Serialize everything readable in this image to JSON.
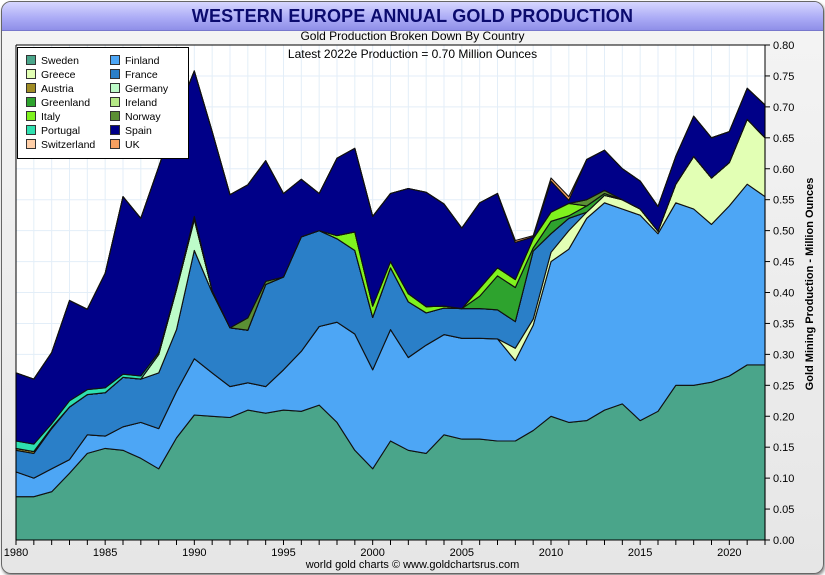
{
  "header": {
    "title": "WESTERN EUROPE ANNUAL GOLD PRODUCTION",
    "subtitle": "Gold Production Broken Down By Country",
    "subtitle2": "Latest 2022e Production = 0.70 Million Ounces"
  },
  "footer": {
    "credit": "world gold charts © www.goldchartsrus.com"
  },
  "chart_data": {
    "type": "area",
    "stacked": true,
    "title": "WESTERN EUROPE ANNUAL GOLD PRODUCTION",
    "subtitle": "Gold Production Broken Down By Country",
    "annotation": "Latest 2022e Production = 0.70 Million Ounces",
    "xlabel": "",
    "ylabel": "Gold Mining Production - Million Ounces",
    "xlim": [
      1980,
      2022
    ],
    "ylim": [
      0,
      0.8
    ],
    "xticks": [
      "1980",
      "1985",
      "1990",
      "1995",
      "2000",
      "2005",
      "2010",
      "2015",
      "2020"
    ],
    "yticks": [
      "0.00",
      "0.05",
      "0.10",
      "0.15",
      "0.20",
      "0.25",
      "0.30",
      "0.35",
      "0.40",
      "0.45",
      "0.50",
      "0.55",
      "0.60",
      "0.65",
      "0.70",
      "0.75",
      "0.80"
    ],
    "grid": true,
    "legend_position": "top-left",
    "x": [
      1980,
      1981,
      1982,
      1983,
      1984,
      1985,
      1986,
      1987,
      1988,
      1989,
      1990,
      1991,
      1992,
      1993,
      1994,
      1995,
      1996,
      1997,
      1998,
      1999,
      2000,
      2001,
      2002,
      2003,
      2004,
      2005,
      2006,
      2007,
      2008,
      2009,
      2010,
      2011,
      2012,
      2013,
      2014,
      2015,
      2016,
      2017,
      2018,
      2019,
      2020,
      2021,
      2022
    ],
    "series": [
      {
        "name": "Sweden",
        "color": "#4aa58a",
        "values": [
          0.07,
          0.07,
          0.078,
          0.108,
          0.14,
          0.148,
          0.145,
          0.132,
          0.115,
          0.165,
          0.202,
          0.2,
          0.198,
          0.21,
          0.205,
          0.21,
          0.208,
          0.218,
          0.19,
          0.145,
          0.115,
          0.16,
          0.145,
          0.14,
          0.17,
          0.163,
          0.163,
          0.16,
          0.16,
          0.177,
          0.2,
          0.19,
          0.193,
          0.21,
          0.22,
          0.193,
          0.208,
          0.25,
          0.25,
          0.255,
          0.265,
          0.283,
          0.283
        ]
      },
      {
        "name": "Finland",
        "color": "#4da6f5",
        "values": [
          0.04,
          0.03,
          0.037,
          0.022,
          0.03,
          0.02,
          0.038,
          0.058,
          0.065,
          0.075,
          0.091,
          0.07,
          0.05,
          0.044,
          0.043,
          0.065,
          0.097,
          0.127,
          0.162,
          0.188,
          0.16,
          0.18,
          0.15,
          0.175,
          0.162,
          0.163,
          0.163,
          0.165,
          0.13,
          0.17,
          0.25,
          0.28,
          0.327,
          0.335,
          0.315,
          0.332,
          0.287,
          0.295,
          0.285,
          0.255,
          0.275,
          0.292,
          0.272
        ]
      },
      {
        "name": "Greece",
        "color": "#e2ffb4",
        "values": [
          0,
          0,
          0,
          0,
          0,
          0,
          0,
          0,
          0,
          0,
          0,
          0,
          0,
          0,
          0,
          0,
          0,
          0,
          0,
          0,
          0,
          0,
          0,
          0,
          0,
          0,
          0,
          0,
          0.02,
          0.01,
          0.015,
          0.03,
          0.01,
          0.012,
          0.015,
          0.01,
          0.004,
          0.03,
          0.085,
          0.075,
          0.07,
          0.105,
          0.095
        ]
      },
      {
        "name": "France",
        "color": "#2a7fc8",
        "values": [
          0.035,
          0.04,
          0.065,
          0.085,
          0.065,
          0.07,
          0.08,
          0.07,
          0.09,
          0.1,
          0.175,
          0.13,
          0.095,
          0.085,
          0.165,
          0.15,
          0.185,
          0.155,
          0.135,
          0.135,
          0.085,
          0.1,
          0.09,
          0.052,
          0.043,
          0.048,
          0.048,
          0.047,
          0.043,
          0.11,
          0.03,
          0.02,
          0,
          0,
          0,
          0,
          0,
          0,
          0,
          0,
          0,
          0,
          0
        ]
      },
      {
        "name": "Austria",
        "color": "#a08c24",
        "values": [
          0.003,
          0.003,
          0.002,
          0,
          0,
          0,
          0,
          0,
          0,
          0,
          0,
          0,
          0,
          0,
          0,
          0,
          0,
          0,
          0,
          0,
          0,
          0,
          0,
          0,
          0,
          0,
          0,
          0,
          0,
          0,
          0,
          0,
          0,
          0,
          0,
          0,
          0,
          0,
          0,
          0,
          0,
          0,
          0
        ]
      },
      {
        "name": "Germany",
        "color": "#bdfcc9",
        "values": [
          0,
          0,
          0,
          0,
          0,
          0,
          0,
          0,
          0.03,
          0.065,
          0.05,
          0.003,
          0,
          0,
          0,
          0,
          0,
          0,
          0,
          0,
          0,
          0,
          0,
          0,
          0,
          0,
          0,
          0,
          0,
          0,
          0,
          0,
          0,
          0,
          0,
          0,
          0,
          0,
          0,
          0,
          0,
          0,
          0
        ]
      },
      {
        "name": "Greenland",
        "color": "#2ea32e",
        "values": [
          0,
          0,
          0,
          0,
          0,
          0,
          0,
          0,
          0,
          0,
          0,
          0,
          0,
          0,
          0,
          0,
          0,
          0,
          0,
          0,
          0,
          0,
          0,
          0,
          0,
          0,
          0.02,
          0.055,
          0.055,
          0.005,
          0.02,
          0.004,
          0.01,
          0.003,
          0,
          0,
          0,
          0,
          0,
          0,
          0,
          0,
          0
        ]
      },
      {
        "name": "Ireland",
        "color": "#b5e986",
        "values": [
          0,
          0,
          0,
          0,
          0,
          0,
          0,
          0,
          0,
          0,
          0,
          0,
          0,
          0,
          0,
          0,
          0,
          0,
          0,
          0,
          0,
          0,
          0,
          0,
          0,
          0,
          0,
          0,
          0,
          0,
          0,
          0,
          0,
          0,
          0,
          0,
          0,
          0,
          0,
          0,
          0,
          0,
          0
        ]
      },
      {
        "name": "Italy",
        "color": "#7ff21e",
        "values": [
          0,
          0,
          0,
          0,
          0,
          0,
          0,
          0,
          0,
          0,
          0,
          0,
          0,
          0,
          0,
          0,
          0,
          0,
          0.005,
          0.03,
          0.018,
          0.01,
          0.013,
          0.01,
          0.003,
          0,
          0.013,
          0.013,
          0.013,
          0.015,
          0.015,
          0.02,
          0.0,
          0.0,
          0,
          0,
          0,
          0,
          0,
          0,
          0,
          0,
          0
        ]
      },
      {
        "name": "Norway",
        "color": "#5b8f34",
        "values": [
          0,
          0,
          0,
          0,
          0,
          0,
          0,
          0,
          0,
          0,
          0,
          0,
          0,
          0.02,
          0.005,
          0,
          0,
          0,
          0,
          0,
          0,
          0,
          0,
          0,
          0,
          0,
          0,
          0,
          0,
          0,
          0,
          0,
          0.01,
          0.005,
          0,
          0,
          0,
          0,
          0,
          0,
          0,
          0,
          0
        ]
      },
      {
        "name": "Portugal",
        "color": "#2ee0b0",
        "values": [
          0.012,
          0.012,
          0.006,
          0.01,
          0.008,
          0.008,
          0.005,
          0.005,
          0.003,
          0.002,
          0.005,
          0,
          0,
          0,
          0,
          0,
          0,
          0,
          0,
          0,
          0,
          0,
          0,
          0,
          0,
          0,
          0,
          0,
          0,
          0,
          0,
          0,
          0,
          0,
          0,
          0,
          0,
          0,
          0,
          0,
          0,
          0,
          0
        ]
      },
      {
        "name": "Spain",
        "color": "#000088",
        "values": [
          0.11,
          0.105,
          0.115,
          0.162,
          0.13,
          0.185,
          0.287,
          0.255,
          0.3,
          0.28,
          0.235,
          0.257,
          0.215,
          0.215,
          0.195,
          0.135,
          0.093,
          0.06,
          0.125,
          0.135,
          0.145,
          0.11,
          0.17,
          0.185,
          0.165,
          0.13,
          0.138,
          0.12,
          0.06,
          0.003,
          0.05,
          0.005,
          0.065,
          0.065,
          0.05,
          0.045,
          0.04,
          0.045,
          0.065,
          0.065,
          0.05,
          0.05,
          0.053
        ]
      },
      {
        "name": "Switzerland",
        "color": "#ffcfa8",
        "values": [
          0,
          0,
          0,
          0,
          0,
          0,
          0,
          0,
          0,
          0,
          0,
          0,
          0,
          0,
          0,
          0,
          0,
          0,
          0,
          0,
          0,
          0,
          0,
          0,
          0,
          0,
          0,
          0,
          0,
          0,
          0,
          0,
          0,
          0,
          0,
          0,
          0,
          0,
          0,
          0,
          0,
          0,
          0
        ]
      },
      {
        "name": "UK",
        "color": "#f6a060",
        "values": [
          0,
          0,
          0,
          0,
          0,
          0,
          0,
          0,
          0,
          0,
          0,
          0,
          0,
          0,
          0,
          0,
          0,
          0,
          0,
          0,
          0,
          0,
          0,
          0,
          0,
          0,
          0,
          0,
          0.003,
          0.002,
          0.005,
          0.006,
          0,
          0,
          0,
          0,
          0,
          0,
          0,
          0,
          0,
          0,
          0
        ]
      }
    ]
  }
}
